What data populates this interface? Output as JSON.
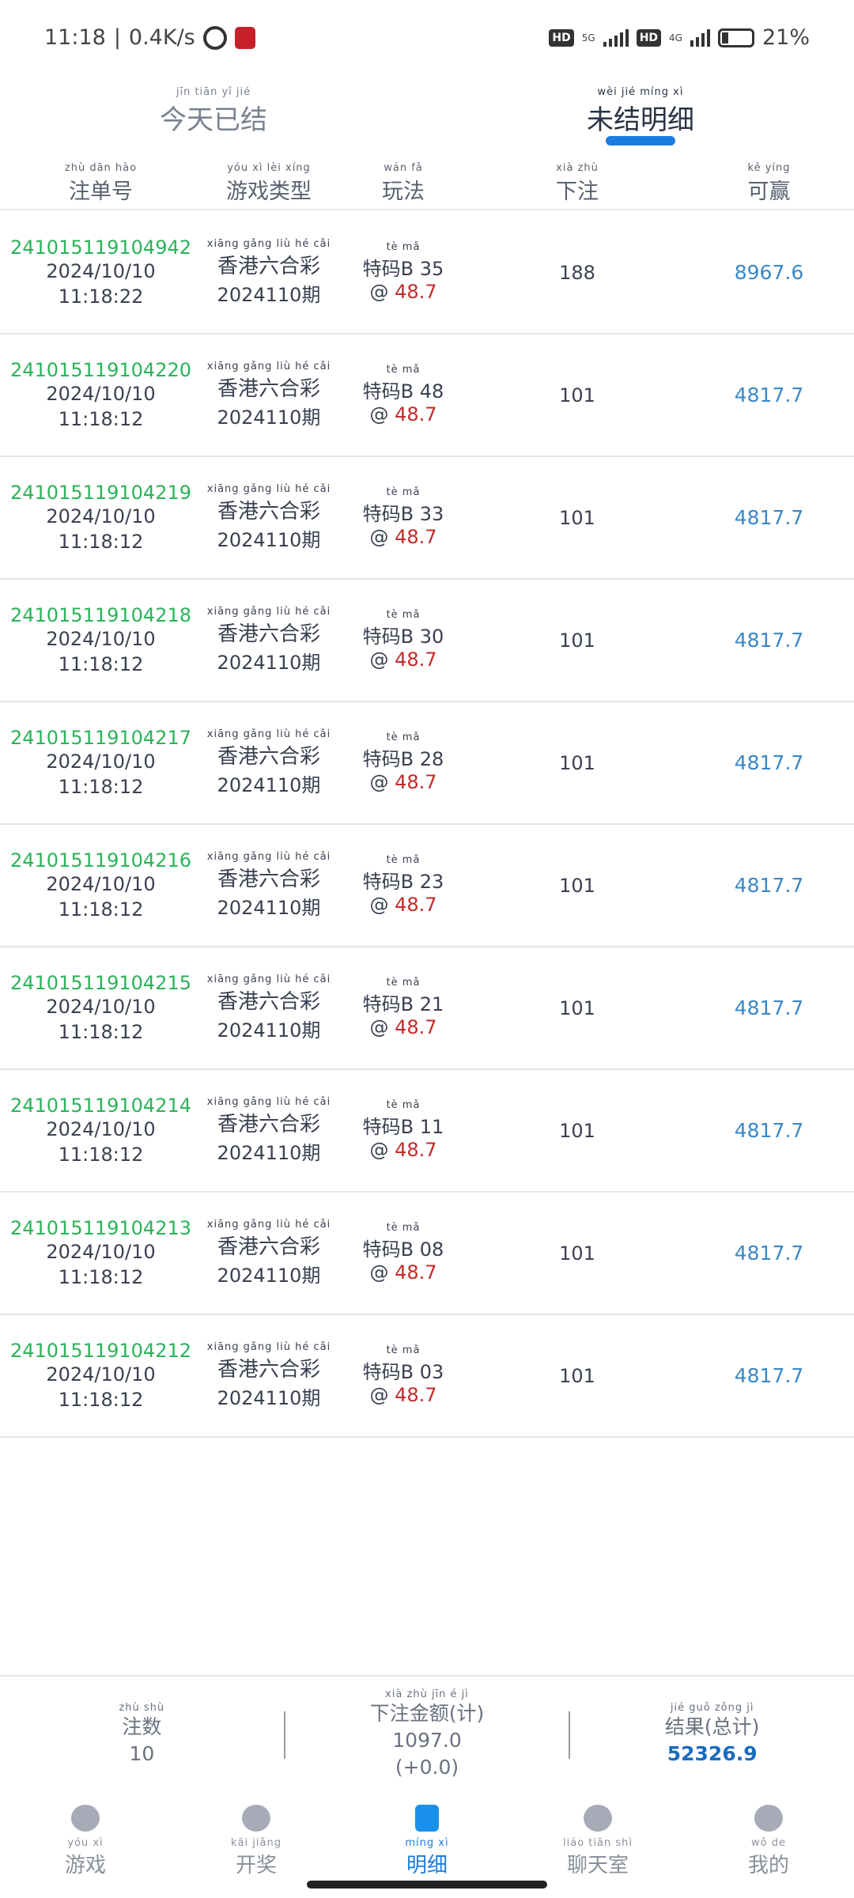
{
  "status_bar": {
    "time": "11:18",
    "speed": "0.4K/s",
    "network1": "5G",
    "network2": "4G",
    "battery": "21%"
  },
  "tabs": [
    {
      "label": "今天已结",
      "pinyin": "jīn tiān yǐ jié",
      "active": false
    },
    {
      "label": "未结明细",
      "pinyin": "wèi jié míng xì",
      "active": true
    }
  ],
  "accent_color": "#1a7cdf",
  "columns": [
    {
      "label": "注单号",
      "pinyin": "zhù dān hào"
    },
    {
      "label": "游戏类型",
      "pinyin": "yóu xì lèi xíng"
    },
    {
      "label": "玩法",
      "pinyin": "wán fǎ"
    },
    {
      "label": "下注",
      "pinyin": "xià zhù"
    },
    {
      "label": "可赢",
      "pinyin": "kě yíng"
    }
  ],
  "game_pinyin": "xiāng gǎng liù hé cǎi",
  "play_pinyin": "tè mǎ",
  "rows": [
    {
      "order_id": "241015119104942",
      "date": "2024/10/10",
      "time": "11:18:22",
      "game": "香港六合彩",
      "period": "2024110期",
      "play": "特码B 35",
      "odds": "48.7",
      "bet": "188",
      "win": "8967.6"
    },
    {
      "order_id": "241015119104220",
      "date": "2024/10/10",
      "time": "11:18:12",
      "game": "香港六合彩",
      "period": "2024110期",
      "play": "特码B 48",
      "odds": "48.7",
      "bet": "101",
      "win": "4817.7"
    },
    {
      "order_id": "241015119104219",
      "date": "2024/10/10",
      "time": "11:18:12",
      "game": "香港六合彩",
      "period": "2024110期",
      "play": "特码B 33",
      "odds": "48.7",
      "bet": "101",
      "win": "4817.7"
    },
    {
      "order_id": "241015119104218",
      "date": "2024/10/10",
      "time": "11:18:12",
      "game": "香港六合彩",
      "period": "2024110期",
      "play": "特码B 30",
      "odds": "48.7",
      "bet": "101",
      "win": "4817.7"
    },
    {
      "order_id": "241015119104217",
      "date": "2024/10/10",
      "time": "11:18:12",
      "game": "香港六合彩",
      "period": "2024110期",
      "play": "特码B 28",
      "odds": "48.7",
      "bet": "101",
      "win": "4817.7"
    },
    {
      "order_id": "241015119104216",
      "date": "2024/10/10",
      "time": "11:18:12",
      "game": "香港六合彩",
      "period": "2024110期",
      "play": "特码B 23",
      "odds": "48.7",
      "bet": "101",
      "win": "4817.7"
    },
    {
      "order_id": "241015119104215",
      "date": "2024/10/10",
      "time": "11:18:12",
      "game": "香港六合彩",
      "period": "2024110期",
      "play": "特码B 21",
      "odds": "48.7",
      "bet": "101",
      "win": "4817.7"
    },
    {
      "order_id": "241015119104214",
      "date": "2024/10/10",
      "time": "11:18:12",
      "game": "香港六合彩",
      "period": "2024110期",
      "play": "特码B 11",
      "odds": "48.7",
      "bet": "101",
      "win": "4817.7"
    },
    {
      "order_id": "241015119104213",
      "date": "2024/10/10",
      "time": "11:18:12",
      "game": "香港六合彩",
      "period": "2024110期",
      "play": "特码B 08",
      "odds": "48.7",
      "bet": "101",
      "win": "4817.7"
    },
    {
      "order_id": "241015119104212",
      "date": "2024/10/10",
      "time": "11:18:12",
      "game": "香港六合彩",
      "period": "2024110期",
      "play": "特码B 03",
      "odds": "48.7",
      "bet": "101",
      "win": "4817.7"
    }
  ],
  "summary": {
    "count": {
      "label": "注数",
      "pinyin": "zhù shù",
      "value": "10"
    },
    "amount": {
      "label": "下注金额(计)",
      "pinyin": "xià zhù jīn é jì",
      "value": "1097.0",
      "delta": "(+0.0)"
    },
    "result": {
      "label": "结果(总计)",
      "pinyin": "jié guǒ zǒng jì",
      "value": "52326.9"
    }
  },
  "nav": [
    {
      "label": "游戏",
      "pinyin": "yóu xì",
      "icon": "star-icon",
      "active": false
    },
    {
      "label": "开奖",
      "pinyin": "kāi jiǎng",
      "icon": "bar-chart-icon",
      "active": false
    },
    {
      "label": "明细",
      "pinyin": "míng xì",
      "icon": "list-icon",
      "active": true
    },
    {
      "label": "聊天室",
      "pinyin": "liáo tiān shì",
      "icon": "chat-icon",
      "active": false
    },
    {
      "label": "我的",
      "pinyin": "wǒ de",
      "icon": "user-icon",
      "active": false
    }
  ]
}
